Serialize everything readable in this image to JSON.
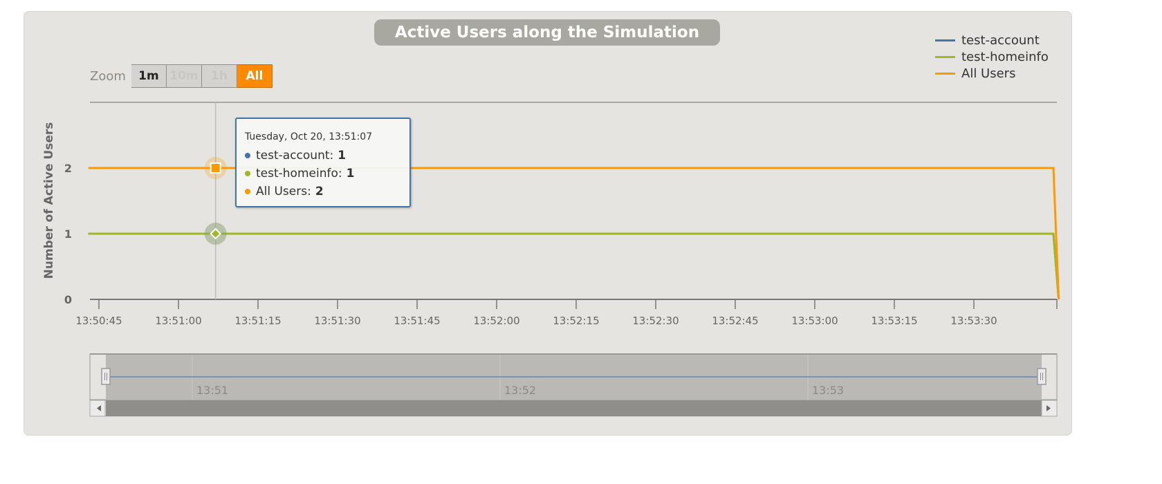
{
  "colors": {
    "test-account": "#4572a7",
    "test-homeinfo": "#a0b828",
    "All Users": "#ff9900"
  },
  "zoom": {
    "label": "Zoom",
    "buttons": [
      {
        "label": "1m",
        "state": "normal"
      },
      {
        "label": "10m",
        "state": "disabled"
      },
      {
        "label": "1h",
        "state": "disabled"
      },
      {
        "label": "All",
        "state": "active"
      }
    ]
  },
  "tooltip": {
    "header": "Tuesday, Oct 20, 13:51:07",
    "rows": [
      {
        "name": "test-account",
        "value": "1"
      },
      {
        "name": "test-homeinfo",
        "value": "1"
      },
      {
        "name": "All Users",
        "value": "2"
      }
    ]
  },
  "chart_data": {
    "type": "line",
    "title": "Active Users along the Simulation",
    "xlabel": "",
    "ylabel": "Number of Active Users",
    "ylim": [
      0,
      3
    ],
    "yticks": [
      "0",
      "1",
      "2"
    ],
    "xticks": [
      "13:50:45",
      "13:51:00",
      "13:51:15",
      "13:51:30",
      "13:51:45",
      "13:52:00",
      "13:52:15",
      "13:52:30",
      "13:52:45",
      "13:53:00",
      "13:53:15",
      "13:53:30"
    ],
    "legend": {
      "position": "top-right",
      "entries": [
        "test-account",
        "test-homeinfo",
        "All Users"
      ]
    },
    "x": [
      "13:50:43",
      "13:53:45",
      "13:53:46"
    ],
    "series": [
      {
        "name": "test-account",
        "values": [
          1,
          1,
          0
        ]
      },
      {
        "name": "test-homeinfo",
        "values": [
          1,
          1,
          0
        ]
      },
      {
        "name": "All Users",
        "values": [
          2,
          2,
          0
        ]
      }
    ],
    "hover_x": "13:51:07",
    "navigator": {
      "ticks": [
        "13:51",
        "13:52",
        "13:53"
      ]
    }
  }
}
